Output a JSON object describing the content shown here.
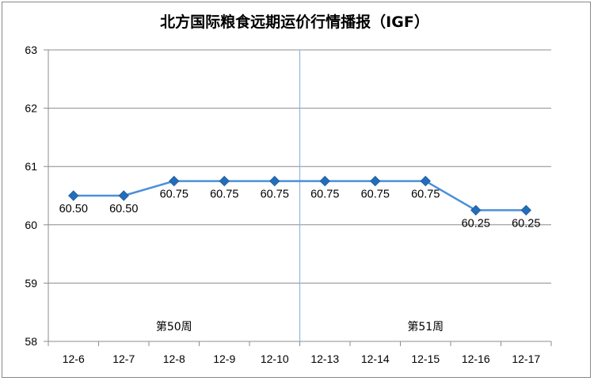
{
  "chart_data": {
    "type": "line",
    "title": "北方国际粮食远期运价行情播报（IGF）",
    "categories": [
      "12-6",
      "12-7",
      "12-8",
      "12-9",
      "12-10",
      "12-13",
      "12-14",
      "12-15",
      "12-16",
      "12-17"
    ],
    "series": [
      {
        "values": [
          60.5,
          60.5,
          60.75,
          60.75,
          60.75,
          60.75,
          60.75,
          60.75,
          60.25,
          60.25
        ]
      }
    ],
    "data_labels": [
      "60.50",
      "60.50",
      "60.75",
      "60.75",
      "60.75",
      "60.75",
      "60.75",
      "60.75",
      "60.25",
      "60.25"
    ],
    "y_ticks": [
      "58",
      "59",
      "60",
      "61",
      "62",
      "63"
    ],
    "ylim": [
      58,
      63
    ],
    "grid": true,
    "legend": "none",
    "annotations": [
      {
        "text": "第50周",
        "category_span": [
          0,
          4
        ]
      },
      {
        "text": "第51周",
        "category_span": [
          5,
          9
        ]
      }
    ],
    "week_divider_after_index": 4,
    "colors": {
      "line": "#4a90d9",
      "marker": "#1f6fbf",
      "grid": "#8c8c8c",
      "divider": "#8fb6de"
    }
  }
}
